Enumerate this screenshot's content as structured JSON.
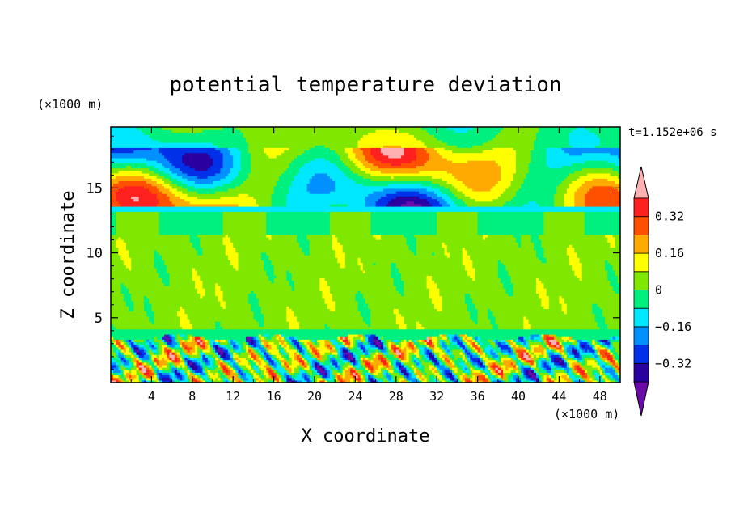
{
  "chart_data": {
    "type": "heatmap",
    "title": "potential temperature deviation",
    "xlabel": "X coordinate",
    "ylabel": "Z coordinate",
    "x_unit": "(×1000 m)",
    "z_unit": "(×1000 m)",
    "time_label": "t=1.152e+06 s",
    "xlim": [
      0,
      50
    ],
    "zlim": [
      0,
      19.7
    ],
    "x_ticks": [
      4,
      8,
      12,
      16,
      20,
      24,
      28,
      32,
      36,
      40,
      44,
      48
    ],
    "z_ticks": [
      5,
      10,
      15
    ],
    "colorbar": {
      "levels": [
        -0.4,
        -0.32,
        -0.24,
        -0.16,
        -0.08,
        0,
        0.08,
        0.16,
        0.24,
        0.32,
        0.4
      ],
      "tick_values": [
        0.32,
        0.16,
        0,
        -0.16,
        -0.32
      ],
      "tick_labels": [
        "0.32",
        "0.16",
        "0",
        "−0.16",
        "−0.32"
      ],
      "colors": [
        "#6a0aa8",
        "#2a00a0",
        "#0030e8",
        "#0090ff",
        "#00e8ff",
        "#00f080",
        "#80e800",
        "#ffff00",
        "#ffaa00",
        "#ff5000",
        "#ff2020",
        "#ffb0b0"
      ],
      "extend": "both"
    }
  }
}
